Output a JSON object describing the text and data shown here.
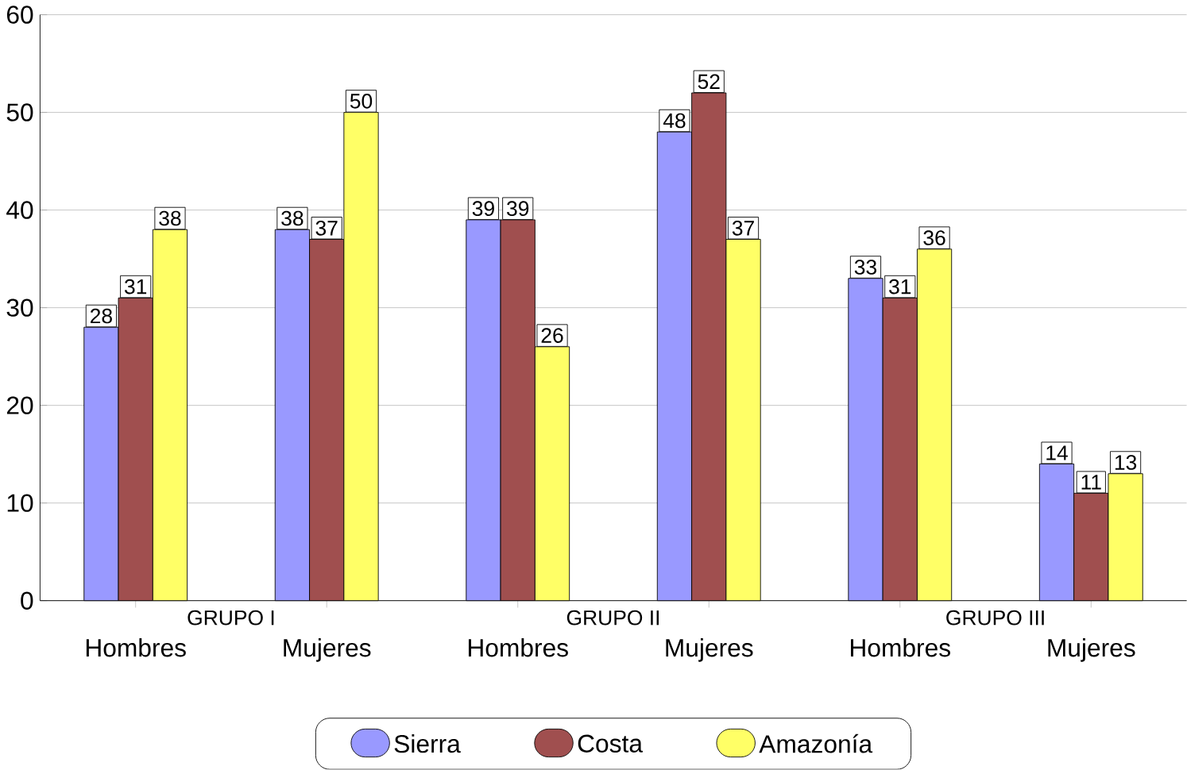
{
  "chart_data": {
    "type": "bar",
    "categories": [
      "Hombres",
      "Mujeres",
      "Hombres",
      "Mujeres",
      "Hombres",
      "Mujeres"
    ],
    "annotations": [
      "GRUPO I",
      "GRUPO II",
      "GRUPO III"
    ],
    "series": [
      {
        "name": "Sierra",
        "color": "#9999ff",
        "values": [
          28,
          38,
          39,
          48,
          33,
          14
        ]
      },
      {
        "name": "Costa",
        "color": "#a04f4f",
        "values": [
          31,
          37,
          39,
          52,
          31,
          11
        ]
      },
      {
        "name": "Amazonía",
        "color": "#ffff66",
        "values": [
          38,
          50,
          26,
          37,
          36,
          13
        ]
      }
    ],
    "ylim": [
      0,
      60
    ],
    "yticks": [
      0,
      10,
      20,
      30,
      40,
      50,
      60
    ],
    "grid": "y",
    "legend": "bottom",
    "data_labels": true
  }
}
